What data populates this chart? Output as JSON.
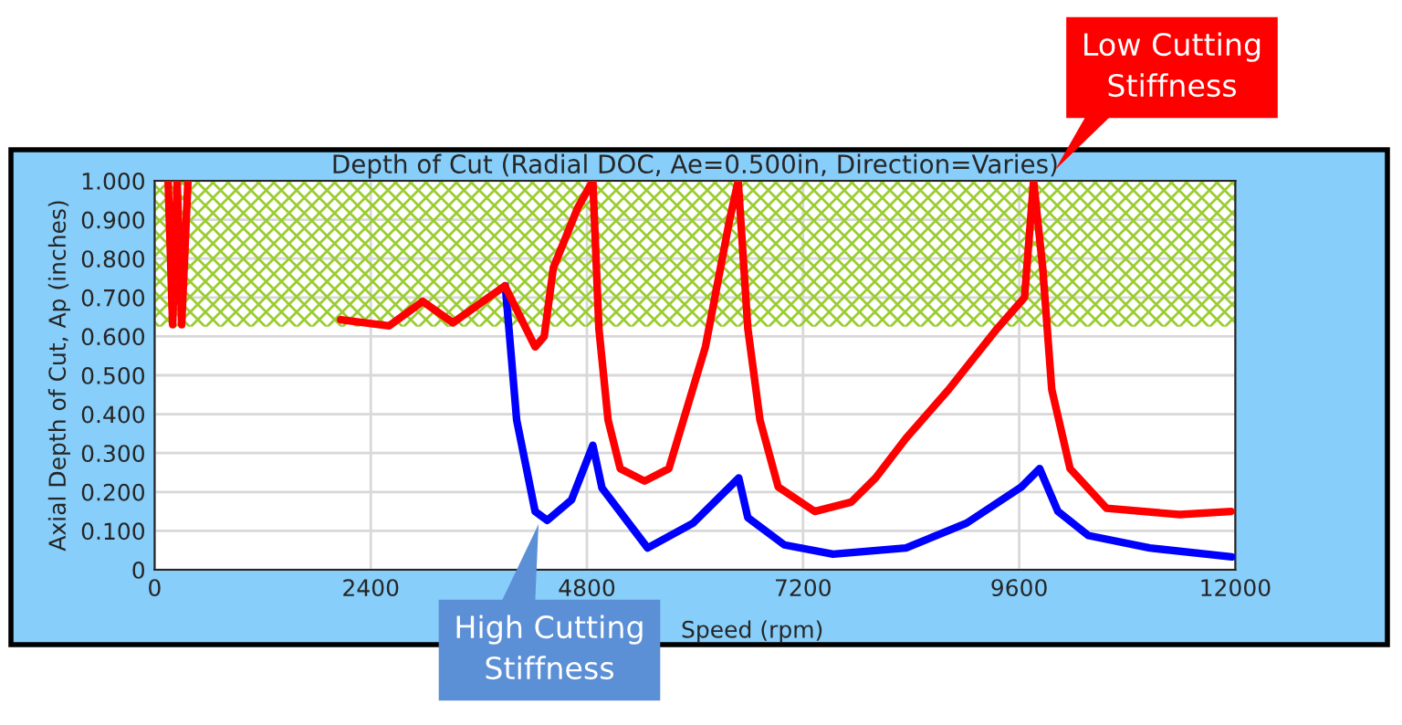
{
  "chart_data": {
    "type": "line",
    "title": "Depth of Cut (Radial DOC, Ae=0.500in, Direction=Varies)",
    "xlabel": "Speed (rpm)",
    "ylabel": "Axial Depth of Cut, Ap (inches)",
    "series": [
      {
        "color": "#0000ff",
        "x": [
          3894,
          4020,
          4225,
          4360,
          4630,
          4866,
          4968,
          5474,
          5980,
          6486,
          6587,
          6992,
          7533,
          8343,
          9017,
          9625,
          9827,
          10030,
          10368,
          11050,
          11961
        ],
        "values": [
          0.73,
          0.385,
          0.15,
          0.127,
          0.18,
          0.32,
          0.21,
          0.056,
          0.12,
          0.236,
          0.134,
          0.064,
          0.04,
          0.056,
          0.12,
          0.213,
          0.26,
          0.15,
          0.088,
          0.056,
          0.033
        ]
      },
      {
        "color": "#ff0000",
        "x": [
          150,
          200,
          250,
          300,
          370,
          420,
          2065,
          2604,
          2977,
          3313,
          3888,
          4225,
          4326,
          4427,
          4697,
          4866,
          4933,
          5035,
          5170,
          5440,
          5710,
          6116,
          6385,
          6480,
          6587,
          6722,
          6924,
          7330,
          7735,
          8005,
          8343,
          8816,
          9355,
          9659,
          9760,
          9861,
          9962,
          10165,
          10570,
          11380,
          11954
        ],
        "values": [
          1.0,
          0.63,
          1.0,
          0.63,
          1.0,
          null,
          0.643,
          0.627,
          0.69,
          0.635,
          0.73,
          0.573,
          0.6,
          0.776,
          0.93,
          1.0,
          0.62,
          0.385,
          0.26,
          0.228,
          0.26,
          0.573,
          0.9,
          1.0,
          0.62,
          0.385,
          0.213,
          0.15,
          0.174,
          0.236,
          0.338,
          0.463,
          0.62,
          0.7,
          1.0,
          0.776,
          0.463,
          0.26,
          0.158,
          0.142,
          0.15
        ]
      }
    ],
    "bands": [
      {
        "axis": "y",
        "from": 0.625,
        "to": 1.0,
        "color": "#9acd32",
        "label": null
      }
    ],
    "annotations": [
      "Low Cutting Stiffness",
      "High Cutting Stiffness"
    ],
    "xlim": [
      0,
      12000
    ],
    "ylim": [
      0,
      1.0
    ],
    "xticks": [
      0,
      2400,
      4800,
      7200,
      9600,
      12000
    ],
    "yticks": [
      0,
      {
        "value": 0.1,
        "label": "0.100"
      },
      {
        "value": 0.2,
        "label": "0.200"
      },
      {
        "value": 0.3,
        "label": "0.300"
      },
      {
        "value": 0.4,
        "label": "0.400"
      },
      {
        "value": 0.5,
        "label": "0.500"
      },
      {
        "value": 0.6,
        "label": "0.600"
      },
      {
        "value": 0.7,
        "label": "0.700"
      },
      {
        "value": 0.8,
        "label": "0.800"
      },
      {
        "value": 0.9,
        "label": "0.900"
      },
      {
        "value": 1.0,
        "label": "1.000"
      }
    ],
    "grid": true,
    "legend": false,
    "marker": "none",
    "line_style": "solid"
  }
}
